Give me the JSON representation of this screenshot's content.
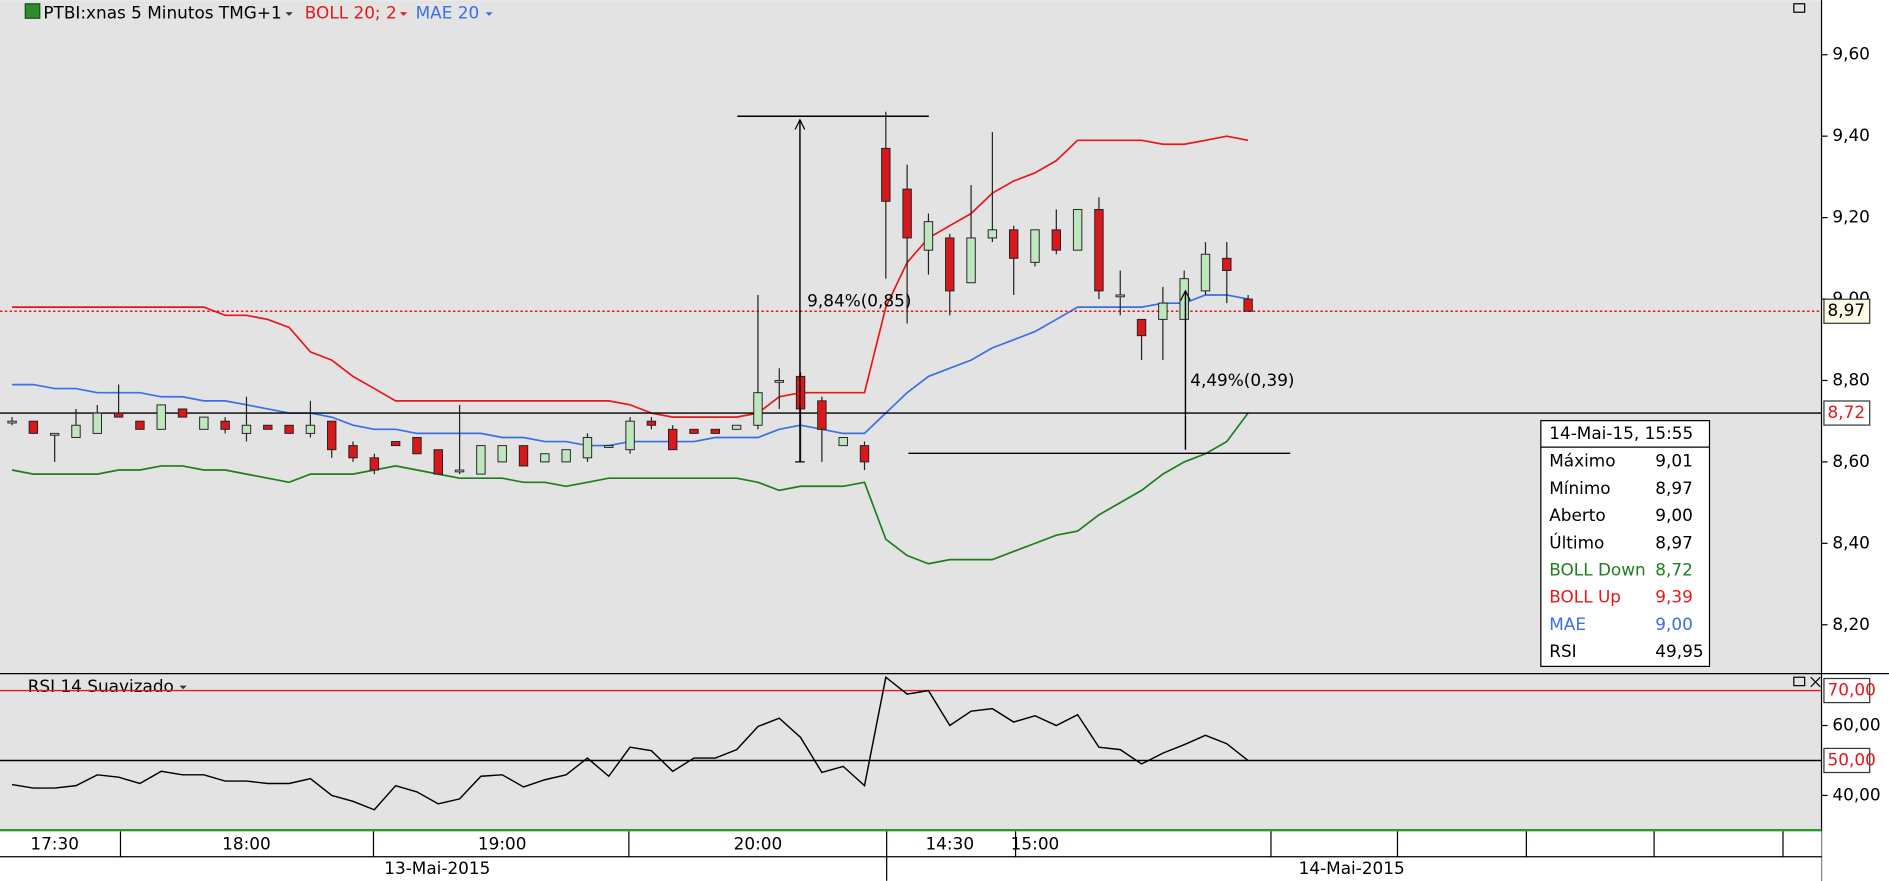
{
  "chart_data": [
    {
      "type": "candlestick",
      "title": "PTBI:xnas 5 Minutos TMG+1",
      "categories": [
        null,
        null,
        "17:30",
        null,
        null,
        null,
        null,
        null,
        null,
        null,
        null,
        "18:00",
        null,
        null,
        null,
        null,
        null,
        null,
        null,
        null,
        null,
        null,
        null,
        "19:00",
        null,
        null,
        null,
        null,
        null,
        null,
        null,
        null,
        null,
        null,
        null,
        "20:00",
        null,
        null,
        null,
        null,
        null,
        null,
        null,
        null,
        "14:30",
        null,
        null,
        null,
        "15:00",
        null,
        null,
        null,
        null,
        null,
        null,
        null,
        null,
        null,
        null
      ],
      "date_labels": [
        "13-Mai-2015",
        "14-Mai-2015"
      ],
      "open": [
        8.7,
        8.7,
        8.67,
        8.66,
        8.67,
        8.72,
        8.7,
        8.68,
        8.73,
        8.68,
        8.7,
        8.67,
        8.69,
        8.69,
        8.67,
        8.7,
        8.64,
        8.61,
        8.65,
        8.66,
        8.63,
        8.58,
        8.57,
        8.6,
        8.64,
        8.6,
        8.6,
        8.61,
        8.64,
        8.63,
        8.7,
        8.68,
        8.68,
        8.68,
        8.68,
        8.69,
        8.8,
        8.81,
        8.75,
        8.64,
        8.64,
        9.37,
        9.27,
        9.12,
        9.15,
        9.04,
        9.15,
        9.17,
        9.09,
        9.17,
        9.12,
        9.22,
        9.01,
        8.95,
        8.95,
        8.95,
        9.02,
        9.1,
        9.0
      ],
      "high": [
        8.71,
        8.7,
        8.67,
        8.73,
        8.74,
        8.79,
        8.7,
        8.74,
        8.73,
        8.71,
        8.71,
        8.76,
        8.69,
        8.69,
        8.75,
        8.7,
        8.65,
        8.62,
        8.65,
        8.66,
        8.63,
        8.74,
        8.64,
        8.64,
        8.64,
        8.62,
        8.63,
        8.67,
        8.64,
        8.71,
        8.71,
        8.69,
        8.68,
        8.68,
        8.69,
        9.01,
        8.83,
        8.82,
        8.76,
        8.66,
        8.65,
        9.46,
        9.33,
        9.21,
        9.16,
        9.28,
        9.41,
        9.18,
        9.17,
        9.22,
        9.22,
        9.25,
        9.07,
        8.95,
        9.03,
        9.07,
        9.14,
        9.14,
        9.01
      ],
      "low": [
        8.69,
        8.67,
        8.6,
        8.66,
        8.67,
        8.71,
        8.68,
        8.68,
        8.71,
        8.68,
        8.67,
        8.65,
        8.68,
        8.67,
        8.66,
        8.61,
        8.6,
        8.57,
        8.64,
        8.62,
        8.57,
        8.57,
        8.57,
        8.6,
        8.59,
        8.6,
        8.6,
        8.6,
        8.64,
        8.62,
        8.68,
        8.63,
        8.67,
        8.67,
        8.68,
        8.68,
        8.73,
        8.6,
        8.6,
        8.64,
        8.58,
        9.05,
        8.94,
        9.06,
        8.96,
        9.04,
        9.14,
        9.01,
        9.08,
        9.11,
        9.12,
        9.0,
        8.96,
        8.85,
        8.85,
        8.95,
        9.01,
        8.99,
        8.97
      ],
      "close": [
        8.7,
        8.67,
        8.67,
        8.69,
        8.72,
        8.71,
        8.68,
        8.74,
        8.71,
        8.71,
        8.68,
        8.69,
        8.68,
        8.67,
        8.69,
        8.63,
        8.61,
        8.58,
        8.64,
        8.62,
        8.57,
        8.58,
        8.64,
        8.64,
        8.59,
        8.62,
        8.63,
        8.66,
        8.64,
        8.7,
        8.69,
        8.63,
        8.67,
        8.67,
        8.69,
        8.77,
        8.8,
        8.73,
        8.68,
        8.66,
        8.6,
        9.24,
        9.15,
        9.19,
        9.02,
        9.15,
        9.17,
        9.1,
        9.17,
        9.12,
        9.22,
        9.02,
        9.01,
        8.91,
        8.99,
        9.05,
        9.11,
        9.07,
        8.97
      ],
      "up_color": "#bfe6bf",
      "down_color": "#d9181c",
      "indicators": [
        {
          "name": "BOLL 20; 2",
          "color": "#e8171b",
          "lower_color": "#1f7d1f",
          "upper": [
            8.98,
            8.98,
            8.98,
            8.98,
            8.98,
            8.98,
            8.98,
            8.98,
            8.98,
            8.98,
            8.96,
            8.96,
            8.95,
            8.93,
            8.87,
            8.85,
            8.81,
            8.78,
            8.75,
            8.75,
            8.75,
            8.75,
            8.75,
            8.75,
            8.75,
            8.75,
            8.75,
            8.75,
            8.75,
            8.74,
            8.72,
            8.71,
            8.71,
            8.71,
            8.71,
            8.72,
            8.76,
            8.77,
            8.77,
            8.77,
            8.77,
            8.98,
            9.09,
            9.15,
            9.18,
            9.21,
            9.26,
            9.29,
            9.31,
            9.34,
            9.39,
            9.39,
            9.39,
            9.39,
            9.38,
            9.38,
            9.39,
            9.4,
            9.39
          ],
          "lower": [
            8.58,
            8.57,
            8.57,
            8.57,
            8.57,
            8.58,
            8.58,
            8.59,
            8.59,
            8.58,
            8.58,
            8.57,
            8.56,
            8.55,
            8.57,
            8.57,
            8.57,
            8.58,
            8.59,
            8.58,
            8.57,
            8.56,
            8.56,
            8.56,
            8.55,
            8.55,
            8.54,
            8.55,
            8.56,
            8.56,
            8.56,
            8.56,
            8.56,
            8.56,
            8.56,
            8.55,
            8.53,
            8.54,
            8.54,
            8.54,
            8.55,
            8.41,
            8.37,
            8.35,
            8.36,
            8.36,
            8.36,
            8.38,
            8.4,
            8.42,
            8.43,
            8.47,
            8.5,
            8.53,
            8.57,
            8.6,
            8.62,
            8.65,
            8.72
          ]
        },
        {
          "name": "MAE 20",
          "color": "#3a6fe6",
          "values": [
            8.79,
            8.79,
            8.78,
            8.78,
            8.77,
            8.77,
            8.77,
            8.76,
            8.76,
            8.75,
            8.75,
            8.74,
            8.73,
            8.72,
            8.72,
            8.71,
            8.69,
            8.68,
            8.68,
            8.67,
            8.67,
            8.67,
            8.67,
            8.66,
            8.66,
            8.65,
            8.65,
            8.64,
            8.64,
            8.65,
            8.65,
            8.65,
            8.65,
            8.66,
            8.66,
            8.66,
            8.68,
            8.69,
            8.68,
            8.67,
            8.67,
            8.72,
            8.77,
            8.81,
            8.83,
            8.85,
            8.88,
            8.9,
            8.92,
            8.95,
            8.98,
            8.98,
            8.98,
            8.98,
            8.99,
            8.99,
            9.01,
            9.01,
            9.0
          ]
        }
      ],
      "ylim": [
        8.083,
        9.734
      ],
      "yticks": [
        {
          "value": 8.2,
          "label": "8,20"
        },
        {
          "value": 8.4,
          "label": "8,40"
        },
        {
          "value": 8.6,
          "label": "8,60"
        },
        {
          "value": 8.8,
          "label": "8,80"
        },
        {
          "value": 9.0,
          "label": "9,00"
        },
        {
          "value": 9.2,
          "label": "9,20"
        },
        {
          "value": 9.4,
          "label": "9,40"
        },
        {
          "value": 9.6,
          "label": "9,60"
        }
      ],
      "price_lines": [
        {
          "value": 8.97,
          "label": "8,97",
          "color": "#e8171b",
          "style": "dotted",
          "label_color": "#000000",
          "label_bg": "#fafae6"
        },
        {
          "value": 8.72,
          "label": "8,72",
          "color": "#000000",
          "style": "solid",
          "label_color": "#e8171b",
          "label_bg": "#ffffff"
        }
      ],
      "annotations": [
        {
          "text": "9,84%(0,85)",
          "from": 8.6,
          "to": 9.44
        },
        {
          "text": "4,49%(0,39)",
          "from": 8.63,
          "to": 9.02
        }
      ]
    },
    {
      "type": "line",
      "title": "RSI 14 Suavizado",
      "color": "#000000",
      "values": [
        43.1,
        42.1,
        42.1,
        42.8,
        45.9,
        45.2,
        43.4,
        46.9,
        45.9,
        45.9,
        44.1,
        44.1,
        43.4,
        43.4,
        44.8,
        40.0,
        38.3,
        35.9,
        42.8,
        41.0,
        37.6,
        39.0,
        45.5,
        45.9,
        42.4,
        44.5,
        45.9,
        50.7,
        45.5,
        53.8,
        52.8,
        46.9,
        50.7,
        50.7,
        53.1,
        59.7,
        62.1,
        56.6,
        46.6,
        48.3,
        42.8,
        73.8,
        69.0,
        70.0,
        60.0,
        64.1,
        64.8,
        61.0,
        62.8,
        60.0,
        63.1,
        53.8,
        53.1,
        49.0,
        52.1,
        54.5,
        57.2,
        54.8,
        49.95
      ],
      "ylim": [
        29.7,
        74.5
      ],
      "yticks": [
        {
          "value": 40,
          "label": "40,00"
        },
        {
          "value": 60,
          "label": "60,00"
        }
      ],
      "price_lines": [
        {
          "value": 70,
          "label": "70,00",
          "color": "#e8171b",
          "style": "solid",
          "label_color": "#e8171b",
          "label_bg": "#ffffff"
        },
        {
          "value": 50,
          "label": "50,00",
          "color": "#000000",
          "style": "solid",
          "label_color": "#e8171b",
          "label_bg": "#ffffff"
        }
      ]
    }
  ],
  "info_box": {
    "title": "14-Mai-15, 15:55",
    "rows": [
      {
        "label": "Máximo",
        "value": "9,01",
        "color": "#000000"
      },
      {
        "label": "Mínimo",
        "value": "8,97",
        "color": "#000000"
      },
      {
        "label": "Aberto",
        "value": "9,00",
        "color": "#000000"
      },
      {
        "label": "Último",
        "value": "8,97",
        "color": "#000000"
      },
      {
        "label": "BOLL Down",
        "value": "8,72",
        "color": "#1f7d1f"
      },
      {
        "label": "BOLL Up",
        "value": "9,39",
        "color": "#e8171b"
      },
      {
        "label": "MAE",
        "value": "9,00",
        "color": "#3a6fe6"
      },
      {
        "label": "RSI",
        "value": "49,95",
        "color": "#000000"
      }
    ]
  }
}
